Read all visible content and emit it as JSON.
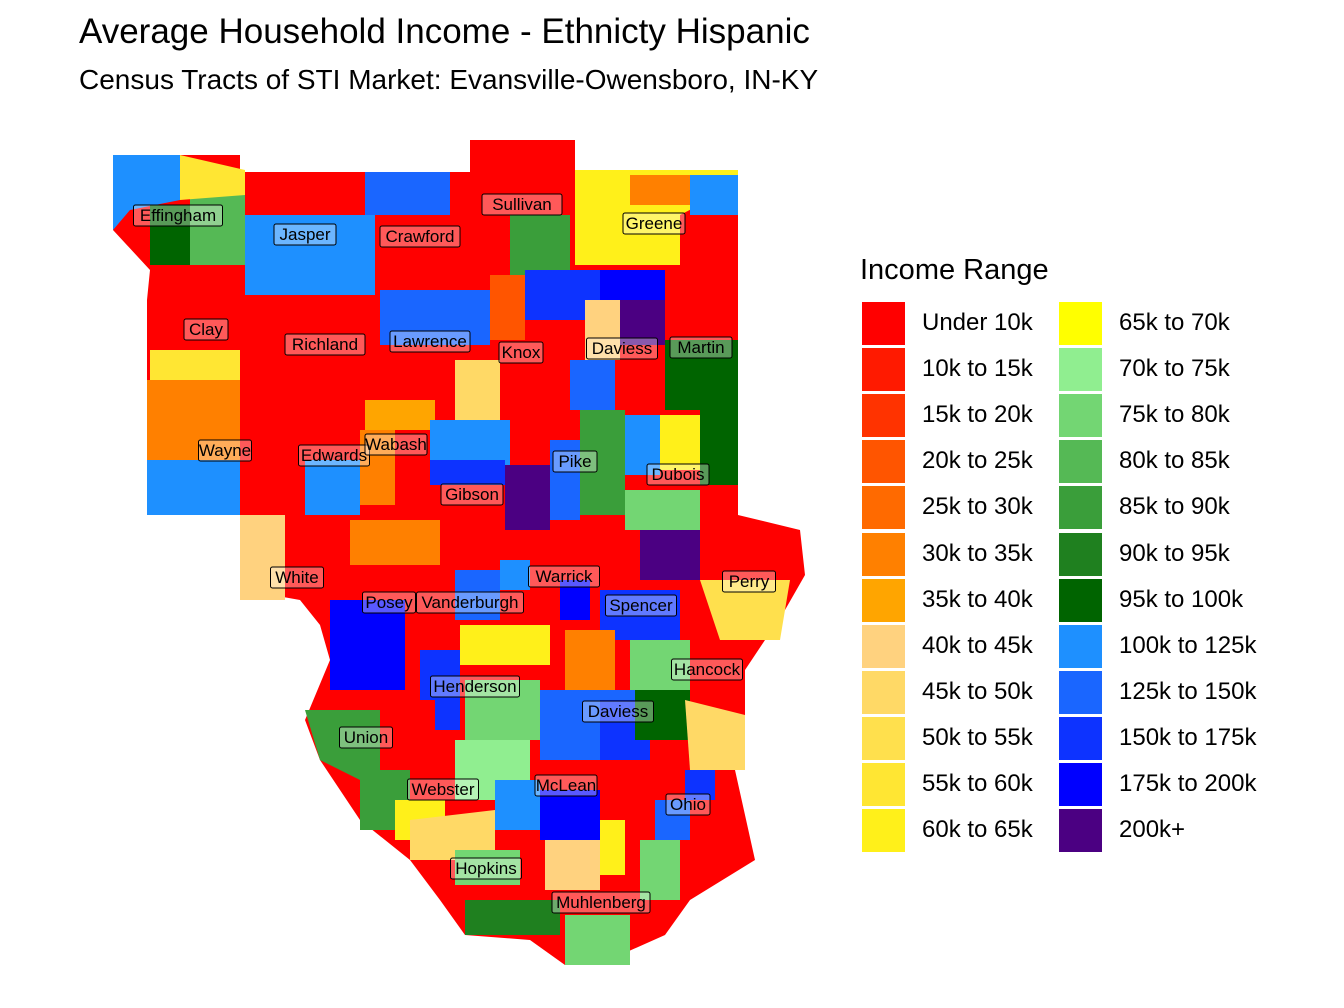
{
  "title": "Average Household Income - Ethnicty Hispanic",
  "subtitle": "Census Tracts of STI Market: Evansville-Owensboro, IN-KY",
  "legend": {
    "title": "Income Range",
    "items": [
      {
        "label": "Under 10k",
        "color": "#ff0000"
      },
      {
        "label": "10k to 15k",
        "color": "#ff1a00"
      },
      {
        "label": "15k to 20k",
        "color": "#ff3300"
      },
      {
        "label": "20k to 25k",
        "color": "#ff5500"
      },
      {
        "label": "25k to 30k",
        "color": "#ff6a00"
      },
      {
        "label": "30k to 35k",
        "color": "#ff8000"
      },
      {
        "label": "35k to 40k",
        "color": "#ffa500"
      },
      {
        "label": "40k to 45k",
        "color": "#ffd27f"
      },
      {
        "label": "45k to 50k",
        "color": "#ffd966"
      },
      {
        "label": "50k to 55k",
        "color": "#ffe04d"
      },
      {
        "label": "55k to 60k",
        "color": "#ffe633"
      },
      {
        "label": "60k to 65k",
        "color": "#fff01a"
      },
      {
        "label": "65k to 70k",
        "color": "#ffff00"
      },
      {
        "label": "70k to 75k",
        "color": "#90ee90"
      },
      {
        "label": "75k to 80k",
        "color": "#73d673"
      },
      {
        "label": "80k to 85k",
        "color": "#55b955"
      },
      {
        "label": "85k to 90k",
        "color": "#3a9e3a"
      },
      {
        "label": "90k to 95k",
        "color": "#1f801f"
      },
      {
        "label": "95k to 100k",
        "color": "#006400"
      },
      {
        "label": "100k to 125k",
        "color": "#1e90ff"
      },
      {
        "label": "125k to 150k",
        "color": "#1a66ff"
      },
      {
        "label": "150k to 175k",
        "color": "#0d33ff"
      },
      {
        "label": "175k to 200k",
        "color": "#0000ff"
      },
      {
        "label": "200k+",
        "color": "#4b0082"
      }
    ]
  },
  "counties": [
    {
      "name": "Effingham",
      "category": "Under 10k"
    },
    {
      "name": "Jasper",
      "category": "100k to 125k"
    },
    {
      "name": "Crawford",
      "category": "Under 10k"
    },
    {
      "name": "Sullivan",
      "category": "Under 10k"
    },
    {
      "name": "Greene",
      "category": "60k to 65k"
    },
    {
      "name": "Clay",
      "category": "Under 10k"
    },
    {
      "name": "Richland",
      "category": "Under 10k"
    },
    {
      "name": "Lawrence",
      "category": "125k to 150k"
    },
    {
      "name": "Knox",
      "category": "Under 10k"
    },
    {
      "name": "Daviess",
      "category": "40k to 45k"
    },
    {
      "name": "Martin",
      "category": "Under 10k"
    },
    {
      "name": "Wayne",
      "category": "30k to 35k"
    },
    {
      "name": "Edwards",
      "category": "Under 10k"
    },
    {
      "name": "Wabash",
      "category": "35k to 40k"
    },
    {
      "name": "Pike",
      "category": "100k to 125k"
    },
    {
      "name": "Dubois",
      "category": "60k to 65k"
    },
    {
      "name": "Gibson",
      "category": "Under 10k"
    },
    {
      "name": "White",
      "category": "40k to 45k"
    },
    {
      "name": "Warrick",
      "category": "Under 10k"
    },
    {
      "name": "Perry",
      "category": "Under 10k"
    },
    {
      "name": "Posey",
      "category": "Under 10k"
    },
    {
      "name": "Vanderburgh",
      "category": "Under 10k"
    },
    {
      "name": "Spencer",
      "category": "Under 10k"
    },
    {
      "name": "Hancock",
      "category": "70k to 75k"
    },
    {
      "name": "Henderson",
      "category": "Under 10k"
    },
    {
      "name": "Daviess",
      "category": "150k to 175k"
    },
    {
      "name": "Union",
      "category": "85k to 90k"
    },
    {
      "name": "Webster",
      "category": "Under 10k"
    },
    {
      "name": "McLean",
      "category": "175k to 200k"
    },
    {
      "name": "Ohio",
      "category": "Under 10k"
    },
    {
      "name": "Hopkins",
      "category": "40k to 45k"
    },
    {
      "name": "Muhlenberg",
      "category": "Under 10k"
    }
  ]
}
